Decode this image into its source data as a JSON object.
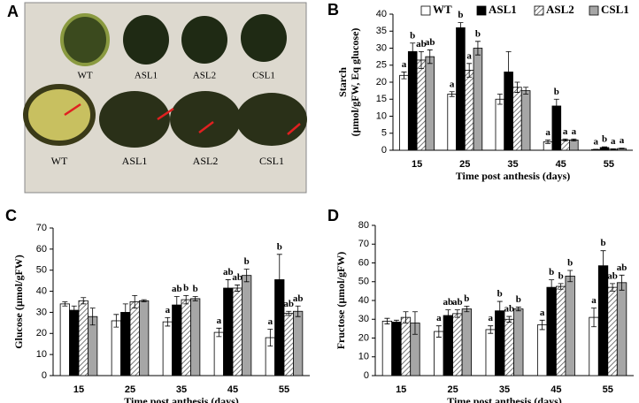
{
  "panel_a": {
    "panel": "A",
    "top_labels": [
      "WT",
      "ASL1",
      "ASL2",
      "CSL1"
    ],
    "bottom_labels": [
      "WT",
      "ASL1",
      "ASL2",
      "CSL1"
    ]
  },
  "chart_data": [
    {
      "type": "bar",
      "panel": "B",
      "ylabel": [
        "Starch",
        "(µmol/gFW, Eq glucose)"
      ],
      "xlabel": "Time post anthesis (days)",
      "categories": [
        "15",
        "25",
        "35",
        "45",
        "55"
      ],
      "ylim": [
        0,
        40
      ],
      "yticks": [
        0,
        5,
        10,
        15,
        20,
        25,
        30,
        35,
        40
      ],
      "legend": "top",
      "series": [
        {
          "name": "WT",
          "color": "#ffffff",
          "values": [
            22,
            16.5,
            15,
            2.5,
            0.2
          ],
          "errors": [
            1,
            0.7,
            1.5,
            0.5,
            0.1
          ],
          "letters": [
            "a",
            "a",
            null,
            "a",
            "a"
          ]
        },
        {
          "name": "ASL1",
          "color": "#000000",
          "values": [
            29,
            36,
            23,
            13,
            0.8
          ],
          "errors": [
            2.5,
            1.5,
            6,
            2,
            0.2
          ],
          "letters": [
            "b",
            "b",
            null,
            "b",
            "b"
          ]
        },
        {
          "name": "ASL2",
          "color": "#ffffff",
          "hatch": true,
          "values": [
            26.5,
            23.5,
            18.5,
            3,
            0.3
          ],
          "errors": [
            2.5,
            2,
            1.5,
            0.3,
            0.1
          ],
          "letters": [
            "ab",
            "a",
            null,
            "a",
            "a"
          ]
        },
        {
          "name": "CSL1",
          "color": "#a6a6a6",
          "values": [
            27.5,
            30,
            17.5,
            3,
            0.5
          ],
          "errors": [
            2,
            2,
            1,
            0.3,
            0.1
          ],
          "letters": [
            "ab",
            "b",
            null,
            "a",
            "a"
          ]
        }
      ]
    },
    {
      "type": "bar",
      "panel": "C",
      "ylabel": [
        "Glucose  (µmol/gFW)"
      ],
      "xlabel": "Time post anthesis (days)",
      "categories": [
        "15",
        "25",
        "35",
        "45",
        "55"
      ],
      "ylim": [
        0,
        70
      ],
      "yticks": [
        0,
        10,
        20,
        30,
        40,
        50,
        60,
        70
      ],
      "series": [
        {
          "color": "#ffffff",
          "values": [
            34,
            26,
            25.5,
            20.5,
            18
          ],
          "errors": [
            1,
            3,
            2,
            2,
            4
          ],
          "letters": [
            null,
            null,
            "a",
            "a",
            "a"
          ]
        },
        {
          "color": "#000000",
          "values": [
            31,
            30,
            33.5,
            41.5,
            45.5
          ],
          "errors": [
            2,
            4,
            4,
            4,
            12
          ],
          "letters": [
            null,
            null,
            "ab",
            "ab",
            "b"
          ]
        },
        {
          "color": "#ffffff",
          "hatch": true,
          "values": [
            35.5,
            35,
            36,
            41.5,
            29.5
          ],
          "errors": [
            1.5,
            3,
            2,
            1.5,
            1
          ],
          "letters": [
            null,
            null,
            "b",
            "ab",
            "ab"
          ]
        },
        {
          "color": "#a6a6a6",
          "values": [
            28,
            35.5,
            36.5,
            47.5,
            30.5
          ],
          "errors": [
            4,
            0.5,
            1,
            3,
            2.5
          ],
          "letters": [
            null,
            null,
            "b",
            "b",
            "ab"
          ]
        }
      ]
    },
    {
      "type": "bar",
      "panel": "D",
      "ylabel": [
        "Fructose  (µmol/gFW)"
      ],
      "xlabel": "Time post anthesis (days)",
      "categories": [
        "15",
        "25",
        "35",
        "45",
        "55"
      ],
      "ylim": [
        0,
        80
      ],
      "yticks": [
        0,
        10,
        20,
        30,
        40,
        50,
        60,
        70,
        80
      ],
      "series": [
        {
          "color": "#ffffff",
          "values": [
            29,
            23.5,
            24.5,
            27,
            31
          ],
          "errors": [
            1.5,
            3,
            2,
            2.5,
            5
          ],
          "letters": [
            null,
            "a",
            "a",
            "a",
            "a"
          ]
        },
        {
          "color": "#000000",
          "values": [
            28.5,
            32,
            34.5,
            47,
            58.5
          ],
          "errors": [
            1,
            3,
            5,
            4,
            8
          ],
          "letters": [
            null,
            "ab",
            "b",
            "b",
            "b"
          ]
        },
        {
          "color": "#ffffff",
          "hatch": true,
          "values": [
            31,
            33,
            30,
            47.5,
            47
          ],
          "errors": [
            3,
            2,
            1.5,
            1.5,
            2
          ],
          "letters": [
            null,
            "ab",
            "ab",
            "b",
            "ab"
          ]
        },
        {
          "color": "#a6a6a6",
          "values": [
            28,
            35.5,
            35.5,
            53,
            49.5
          ],
          "errors": [
            6,
            1.5,
            1,
            3,
            4
          ],
          "letters": [
            null,
            "b",
            "b",
            "b",
            "ab"
          ]
        }
      ]
    }
  ]
}
